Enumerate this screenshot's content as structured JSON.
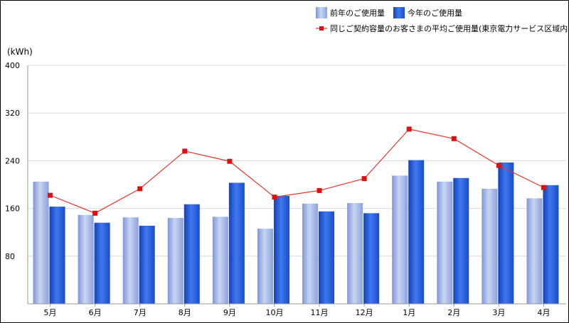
{
  "chart_data": {
    "type": "bar",
    "unit_label": "(kWh)",
    "categories": [
      "5月",
      "6月",
      "7月",
      "8月",
      "9月",
      "10月",
      "11月",
      "12月",
      "1月",
      "2月",
      "3月",
      "4月"
    ],
    "series": [
      {
        "name": "前年のご使用量",
        "type": "bar",
        "color": "#9fb3e6",
        "values": [
          205,
          149,
          145,
          144,
          146,
          126,
          168,
          169,
          215,
          205,
          193,
          177
        ]
      },
      {
        "name": "今年のご使用量",
        "type": "bar",
        "color": "#1f57d9",
        "values": [
          163,
          136,
          131,
          167,
          203,
          181,
          155,
          152,
          241,
          211,
          237,
          199
        ]
      },
      {
        "name": "同じご契約容量のお客さまの平均ご使用量(東京電力サービス区域内)",
        "type": "line",
        "color": "#e8332f",
        "values": [
          182,
          152,
          193,
          256,
          239,
          179,
          190,
          210,
          293,
          277,
          232,
          195
        ]
      }
    ],
    "y_ticks": [
      80,
      160,
      240,
      320,
      400
    ],
    "ylim": [
      0,
      400
    ],
    "grid": true,
    "legend_position": "top-right"
  }
}
